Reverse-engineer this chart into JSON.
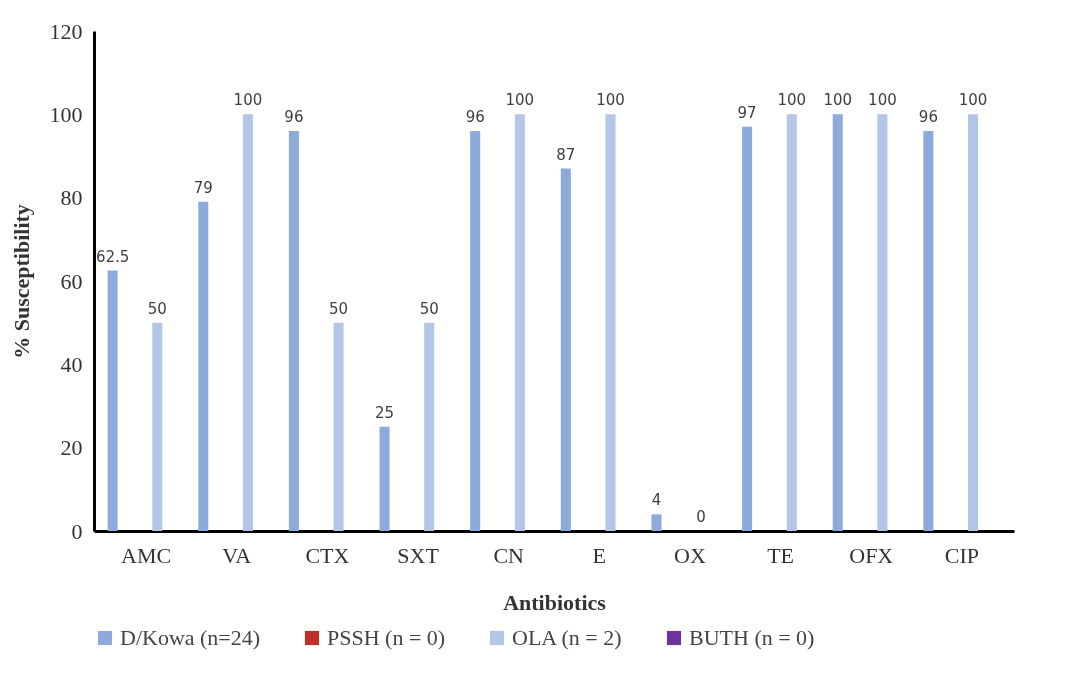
{
  "chart_data": {
    "type": "bar",
    "xlabel": "Antibiotics",
    "ylabel": "% Susceptibility",
    "categories": [
      "AMC",
      "VA",
      "CTX",
      "SXT",
      "CN",
      "E",
      "OX",
      "TE",
      "OFX",
      "CIP"
    ],
    "series": [
      {
        "name": "D/Kowa (n=24)",
        "color": "#8eaadb",
        "values": [
          62.5,
          79,
          96,
          25,
          96,
          87,
          4,
          97,
          100,
          96
        ]
      },
      {
        "name": "PSSH (n = 0)",
        "color": "#c0302b",
        "values": [
          null,
          null,
          null,
          null,
          null,
          null,
          null,
          null,
          null,
          null
        ]
      },
      {
        "name": "OLA (n = 2)",
        "color": "#b4c6e7",
        "values": [
          50,
          100,
          50,
          50,
          100,
          100,
          0,
          100,
          100,
          100
        ]
      },
      {
        "name": "BUTH (n = 0)",
        "color": "#7030a0",
        "values": [
          null,
          null,
          null,
          null,
          null,
          null,
          null,
          null,
          null,
          null
        ]
      }
    ],
    "ylim": [
      0,
      120
    ],
    "yticks": [
      0,
      20,
      40,
      60,
      80,
      100,
      120
    ],
    "grid": false,
    "legend": "bottom",
    "data_labels": true
  }
}
